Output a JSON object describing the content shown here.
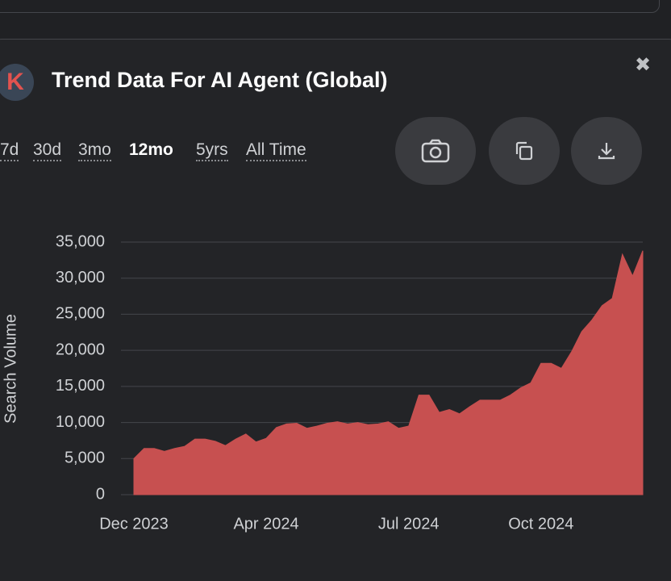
{
  "panel": {
    "logo": "K",
    "title": "Trend Data For AI Agent (Global)",
    "close": "✖",
    "ranges": [
      "7d",
      "30d",
      "3mo",
      "12mo",
      "5yrs",
      "All Time"
    ]
  },
  "chart_data": {
    "type": "area",
    "y_label": "Search Volume",
    "color": "#c75050",
    "grid": true,
    "categories": [
      "Dec 2023",
      null,
      null,
      null,
      null,
      null,
      null,
      null,
      null,
      null,
      null,
      null,
      null,
      "Apr 2024",
      null,
      null,
      null,
      null,
      null,
      null,
      null,
      null,
      null,
      null,
      null,
      null,
      null,
      "Jul 2024",
      null,
      null,
      null,
      null,
      null,
      null,
      null,
      null,
      null,
      null,
      null,
      null,
      "Oct 2024",
      null,
      null,
      null,
      null,
      null,
      null,
      null,
      null,
      null,
      null
    ],
    "values": [
      5000,
      6400,
      6400,
      6000,
      6400,
      6700,
      7700,
      7700,
      7400,
      6800,
      7700,
      8400,
      7300,
      7800,
      9300,
      9800,
      9900,
      9200,
      9500,
      9900,
      10100,
      9800,
      10000,
      9700,
      9800,
      10100,
      9200,
      9500,
      13800,
      13800,
      11400,
      11800,
      11200,
      12200,
      13100,
      13100,
      13100,
      13800,
      14800,
      15500,
      18200,
      18200,
      17500,
      19800,
      22600,
      24200,
      26200,
      27200,
      33300,
      30300,
      33800
    ],
    "ylim": [
      0,
      35000
    ],
    "yticks": [
      0,
      {
        "value": 5000,
        "label": "5,000"
      },
      {
        "value": 10000,
        "label": "10,000"
      },
      {
        "value": 15000,
        "label": "15,000"
      },
      {
        "value": 20000,
        "label": "20,000"
      },
      {
        "value": 25000,
        "label": "25,000"
      },
      {
        "value": 30000,
        "label": "30,000"
      },
      {
        "value": 35000,
        "label": "35,000"
      }
    ]
  }
}
